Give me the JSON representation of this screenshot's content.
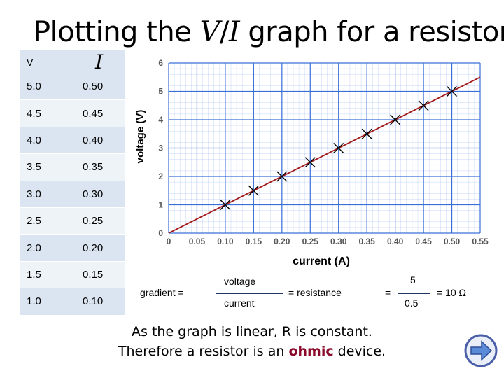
{
  "title": {
    "prefix": "Plotting the ",
    "v": "V",
    "slash": "/",
    "i": "I",
    "suffix": " graph for a resistor"
  },
  "table": {
    "header_v": "V",
    "header_i": "I",
    "rows": [
      {
        "v": "5.0",
        "i": "0.50"
      },
      {
        "v": "4.5",
        "i": "0.45"
      },
      {
        "v": "4.0",
        "i": "0.40"
      },
      {
        "v": "3.5",
        "i": "0.35"
      },
      {
        "v": "3.0",
        "i": "0.30"
      },
      {
        "v": "2.5",
        "i": "0.25"
      },
      {
        "v": "2.0",
        "i": "0.20"
      },
      {
        "v": "1.5",
        "i": "0.15"
      },
      {
        "v": "1.0",
        "i": "0.10"
      }
    ]
  },
  "chart_data": {
    "type": "scatter",
    "xlabel": "current (A)",
    "ylabel": "voltage (V)",
    "xlim": [
      0,
      0.55
    ],
    "ylim": [
      0,
      6
    ],
    "xticks": [
      "0",
      "0.05",
      "0.10",
      "0.15",
      "0.20",
      "0.25",
      "0.30",
      "0.35",
      "0.40",
      "0.45",
      "0.50",
      "0.55"
    ],
    "yticks": [
      "0",
      "1",
      "2",
      "3",
      "4",
      "5",
      "6"
    ],
    "grid": true,
    "points": [
      {
        "x": 0.1,
        "y": 1.0
      },
      {
        "x": 0.15,
        "y": 1.5
      },
      {
        "x": 0.2,
        "y": 2.0
      },
      {
        "x": 0.25,
        "y": 2.5
      },
      {
        "x": 0.3,
        "y": 3.0
      },
      {
        "x": 0.35,
        "y": 3.5
      },
      {
        "x": 0.4,
        "y": 4.0
      },
      {
        "x": 0.45,
        "y": 4.5
      },
      {
        "x": 0.5,
        "y": 5.0
      }
    ],
    "best_fit": {
      "x": [
        0,
        0.55
      ],
      "y": [
        0,
        5.5
      ]
    },
    "colors": {
      "grid": "#3a6fd8",
      "line": "#a31515",
      "marker": "#000000"
    }
  },
  "formula": {
    "gradient_label": "gradient =",
    "numerator": "voltage",
    "denominator": "current",
    "equals_resistance": "= resistance",
    "equals": "=",
    "value_num": "5",
    "value_den": "0.5",
    "result": "= 10 Ω"
  },
  "conclusion": {
    "line1": "As the graph is linear, R is constant.",
    "line2_before": "Therefore a resistor is an ",
    "line2_highlight": "ohmic",
    "line2_after": " device."
  },
  "nav": {
    "icon": "next-arrow-icon",
    "color": "#5b8ad6"
  }
}
